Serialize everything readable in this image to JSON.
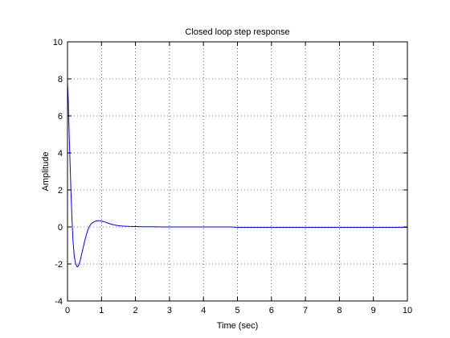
{
  "chart_data": {
    "type": "line",
    "title": "Closed loop step response",
    "xlabel": "Time (sec)",
    "ylabel": "Amplitude",
    "xlim": [
      0,
      10
    ],
    "ylim": [
      -4,
      10
    ],
    "xticks": [
      0,
      1,
      2,
      3,
      4,
      5,
      6,
      7,
      8,
      9,
      10
    ],
    "yticks": [
      -4,
      -2,
      0,
      2,
      4,
      6,
      8,
      10
    ],
    "xtick_labels": [
      "0",
      "1",
      "2",
      "3",
      "4",
      "5",
      "6",
      "7",
      "8",
      "9",
      "10"
    ],
    "ytick_labels": [
      "-4",
      "-2",
      "0",
      "2",
      "4",
      "6",
      "8",
      "10"
    ],
    "grid": true,
    "series": [
      {
        "color": "#0000ff",
        "x": [
          0,
          0.02,
          0.05,
          0.08,
          0.1,
          0.13,
          0.16,
          0.2,
          0.24,
          0.28,
          0.3,
          0.33,
          0.36,
          0.4,
          0.45,
          0.5,
          0.55,
          0.6,
          0.65,
          0.7,
          0.8,
          0.9,
          1.0,
          1.1,
          1.2,
          1.3,
          1.4,
          1.5,
          1.6,
          1.7,
          1.8,
          2.0,
          2.2,
          2.5,
          2.8,
          3.0,
          3.5,
          4.0,
          4.5,
          4.8,
          5.0,
          6.0,
          7.0,
          8.0,
          9.0,
          10.0
        ],
        "y": [
          7.8,
          7.0,
          5.0,
          3.2,
          2.0,
          0.5,
          -0.7,
          -1.6,
          -2.0,
          -2.15,
          -2.15,
          -2.05,
          -1.9,
          -1.6,
          -1.2,
          -0.8,
          -0.45,
          -0.15,
          0.05,
          0.18,
          0.3,
          0.34,
          0.32,
          0.27,
          0.2,
          0.14,
          0.1,
          0.07,
          0.05,
          0.04,
          0.03,
          0.02,
          0.01,
          0.01,
          0.0,
          0.0,
          0.0,
          0.0,
          0.0,
          0.0,
          -0.02,
          -0.02,
          -0.02,
          -0.02,
          -0.02,
          -0.02
        ]
      }
    ]
  }
}
